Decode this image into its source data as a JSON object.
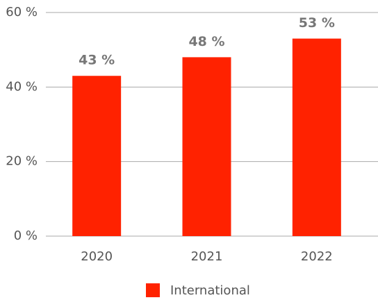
{
  "chart_data": {
    "type": "bar",
    "categories": [
      "2020",
      "2021",
      "2022"
    ],
    "series": [
      {
        "name": "International",
        "color": "#ff2200",
        "values": [
          43,
          48,
          53
        ],
        "value_labels": [
          "43 %",
          "48 %",
          "53 %"
        ]
      }
    ],
    "ylim": [
      0,
      60
    ],
    "yticks": [
      {
        "value": 0,
        "label": "0 %"
      },
      {
        "value": 20,
        "label": "20 %"
      },
      {
        "value": 40,
        "label": "40 %"
      },
      {
        "value": 60,
        "label": "60 %"
      }
    ],
    "grid": true,
    "legend": "bottom"
  }
}
